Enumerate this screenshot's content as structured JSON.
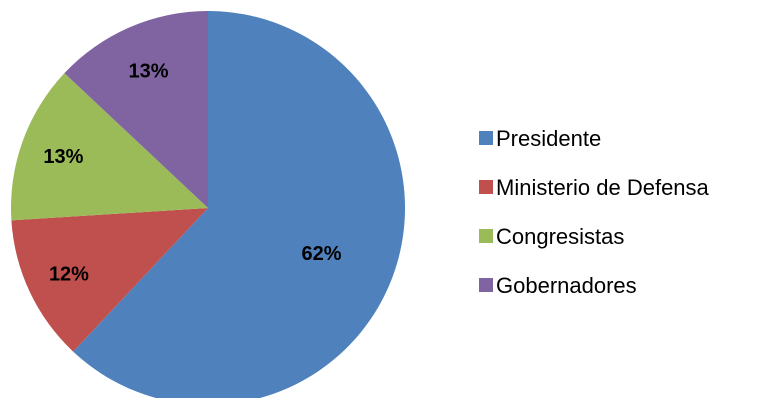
{
  "chart_data": {
    "type": "pie",
    "categories": [
      "Presidente",
      "Ministerio de Defensa",
      "Congresistas",
      "Gobernadores"
    ],
    "values": [
      62,
      12,
      13,
      13
    ],
    "labels": [
      "62%",
      "12%",
      "13%",
      "13%"
    ],
    "colors": [
      "#4F81BD",
      "#C0504D",
      "#9BBB59",
      "#8064A2"
    ],
    "start": "12 o'clock",
    "direction": "clockwise",
    "legend_position": "right"
  }
}
